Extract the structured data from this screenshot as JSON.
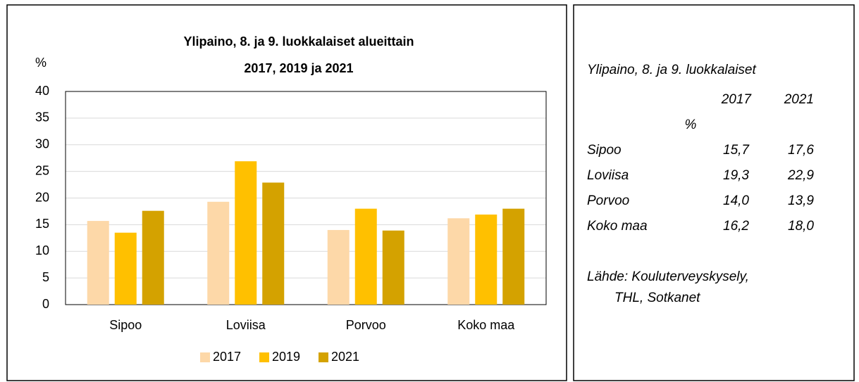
{
  "chart_data": {
    "type": "bar",
    "title": [
      "Ylipaino, 8. ja 9. luokkalaiset alueittain",
      "2017, 2019 ja 2021"
    ],
    "y_label": "%",
    "categories": [
      "Sipoo",
      "Loviisa",
      "Porvoo",
      "Koko maa"
    ],
    "series": [
      {
        "name": "2017",
        "color": "#fdd8a8",
        "values": [
          15.7,
          19.3,
          14.0,
          16.2
        ]
      },
      {
        "name": "2019",
        "color": "#ffc000",
        "values": [
          13.5,
          26.9,
          18.0,
          16.9
        ]
      },
      {
        "name": "2021",
        "color": "#d4a200",
        "values": [
          17.6,
          22.9,
          13.9,
          18.0
        ]
      }
    ],
    "ylim": [
      0,
      40
    ],
    "yticks": [
      0,
      5,
      10,
      15,
      20,
      25,
      30,
      35,
      40
    ],
    "grid": true,
    "legend": "bottom"
  },
  "table": {
    "title": "Ylipaino, 8. ja 9. luokkalaiset",
    "header": [
      "2017",
      "2021"
    ],
    "unit": "%",
    "rows": [
      [
        "Sipoo",
        "15,7",
        "17,6"
      ],
      [
        "Loviisa",
        "19,3",
        "22,9"
      ],
      [
        "Porvoo",
        "14,0",
        "13,9"
      ],
      [
        "Koko maa",
        "16,2",
        "18,0"
      ]
    ],
    "source": [
      "Lähde: Kouluterveyskysely,",
      "THL, Sotkanet"
    ]
  }
}
